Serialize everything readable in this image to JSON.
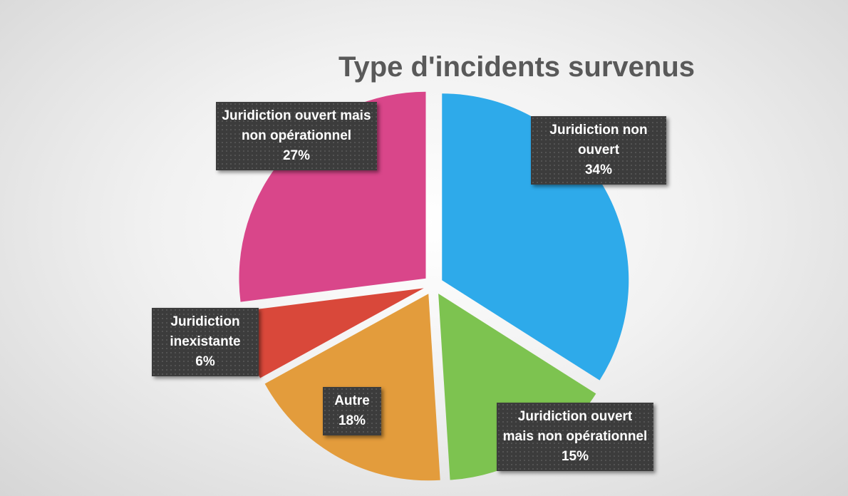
{
  "chart_data": {
    "type": "pie",
    "title": "Type d'incidents survenus",
    "categories": [
      "Juridiction non ouvert",
      "Juridiction ouvert mais non opérationnel",
      "Autre",
      "Juridiction inexistante",
      "Juridiction ouvert mais non opérationnel"
    ],
    "values": [
      34,
      15,
      18,
      6,
      27
    ],
    "value_labels": [
      "34%",
      "15%",
      "18%",
      "6%",
      "27%"
    ],
    "colors": [
      "#2eaaea",
      "#7dc350",
      "#e39c3c",
      "#d9483a",
      "#d9468a"
    ]
  }
}
